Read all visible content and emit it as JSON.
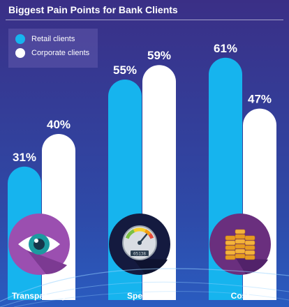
{
  "chart_data": {
    "type": "bar",
    "title": "Biggest Pain Points for Bank Clients",
    "categories": [
      "Transparency",
      "Speed",
      "Cost"
    ],
    "series": [
      {
        "name": "Retail clients",
        "values": [
          31,
          55,
          61
        ],
        "labels": [
          "31%",
          "55%",
          "61%"
        ],
        "color": "#16b4ee"
      },
      {
        "name": "Corporate clients",
        "values": [
          40,
          59,
          47
        ],
        "labels": [
          "40%",
          "59%",
          "47%"
        ],
        "color": "#ffffff"
      }
    ],
    "icons": [
      "eye-icon",
      "speedometer-icon",
      "coin-stack-icon"
    ],
    "speedometer_readout": "05138",
    "ylim": [
      0,
      100
    ],
    "legend": "top-left"
  }
}
